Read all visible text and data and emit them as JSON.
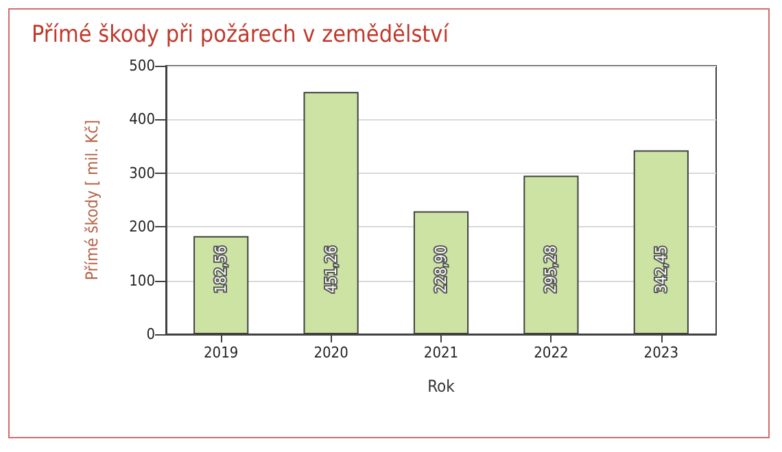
{
  "chart_data": {
    "type": "bar",
    "title": "Přímé škody při požárech v zemědělství",
    "xlabel": "Rok",
    "ylabel": "Přímé škody [ mil. Kč]",
    "categories": [
      "2019",
      "2020",
      "2021",
      "2022",
      "2023"
    ],
    "values": [
      182.56,
      451.26,
      228.9,
      295.28,
      342.45
    ],
    "value_labels": [
      "182,56",
      "451,26",
      "228,90",
      "295,28",
      "342,45"
    ],
    "color": "#cce3a4",
    "ylim": [
      0,
      500
    ],
    "yticks": [
      0,
      100,
      200,
      300,
      400,
      500
    ],
    "grid": "y"
  }
}
